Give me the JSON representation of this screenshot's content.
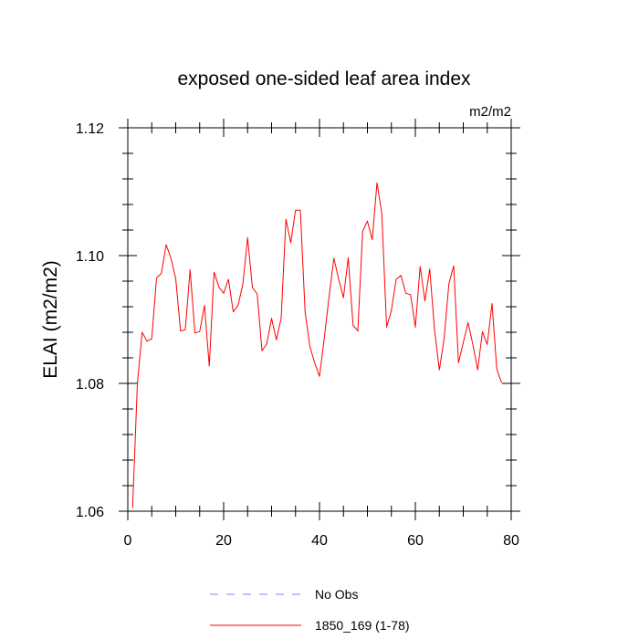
{
  "chart_data": {
    "type": "line",
    "title": "exposed one-sided leaf area index",
    "units": "m2/m2",
    "xlabel": "",
    "ylabel": "ELAI  (m2/m2)",
    "xlim": [
      0,
      80
    ],
    "ylim": [
      1.06,
      1.12
    ],
    "xticks": [
      0,
      20,
      40,
      60,
      80
    ],
    "xtick_labels": [
      "0",
      "20",
      "40",
      "60",
      "80"
    ],
    "yticks": [
      1.06,
      1.08,
      1.1,
      1.12
    ],
    "ytick_labels": [
      "1.06",
      "1.08",
      "1.10",
      "1.12"
    ],
    "xminor": [
      5,
      10,
      15,
      25,
      30,
      35,
      45,
      50,
      55,
      65,
      70,
      75
    ],
    "yminor": [
      1.064,
      1.068,
      1.072,
      1.076,
      1.084,
      1.088,
      1.092,
      1.096,
      1.104,
      1.108,
      1.112,
      1.116
    ],
    "grid": false,
    "legend_position": "bottom",
    "series": [
      {
        "name": "1850_169 (1-78)",
        "color": "#ff0000",
        "style": "solid",
        "x": [
          1,
          2,
          3,
          4,
          5,
          6,
          7,
          8,
          9,
          10,
          11,
          12,
          13,
          14,
          15,
          16,
          17,
          18,
          19,
          20,
          21,
          22,
          23,
          24,
          25,
          26,
          27,
          28,
          29,
          30,
          31,
          32,
          33,
          34,
          35,
          36,
          37,
          38,
          39,
          40,
          41,
          42,
          43,
          44,
          45,
          46,
          47,
          48,
          49,
          50,
          51,
          52,
          53,
          54,
          55,
          56,
          57,
          58,
          59,
          60,
          61,
          62,
          63,
          64,
          65,
          66,
          67,
          68,
          69,
          70,
          71,
          72,
          73,
          74,
          75,
          76,
          77,
          78
        ],
        "values": [
          1.0605,
          1.08,
          1.088,
          1.0866,
          1.087,
          1.0965,
          1.0972,
          1.1017,
          1.0996,
          1.0964,
          1.0882,
          1.0884,
          1.0978,
          1.0879,
          1.0881,
          1.0922,
          1.0827,
          1.0974,
          1.0951,
          1.0941,
          1.0963,
          1.0912,
          1.0922,
          1.0955,
          1.1028,
          1.095,
          1.094,
          1.0851,
          1.0862,
          1.0902,
          1.0868,
          1.0902,
          1.1057,
          1.102,
          1.1071,
          1.1071,
          1.0911,
          1.0858,
          1.0832,
          1.0811,
          1.0871,
          1.0936,
          1.0996,
          1.0963,
          1.0934,
          1.0997,
          1.0891,
          1.0882,
          1.1038,
          1.1054,
          1.1025,
          1.1114,
          1.1066,
          1.0888,
          1.0914,
          1.0963,
          1.0969,
          1.0941,
          1.0939,
          1.0888,
          1.0983,
          1.0929,
          1.0979,
          1.0884,
          1.0821,
          1.087,
          1.0956,
          1.0984,
          1.0832,
          1.0864,
          1.0895,
          1.0861,
          1.0821,
          1.0881,
          1.0861,
          1.0925,
          1.0822,
          1.0801
        ]
      }
    ],
    "legend": [
      {
        "label": "No Obs",
        "color": "#8080ff",
        "style": "dashed"
      },
      {
        "label": "1850_169 (1-78)",
        "color": "#ff0000",
        "style": "solid"
      }
    ]
  }
}
